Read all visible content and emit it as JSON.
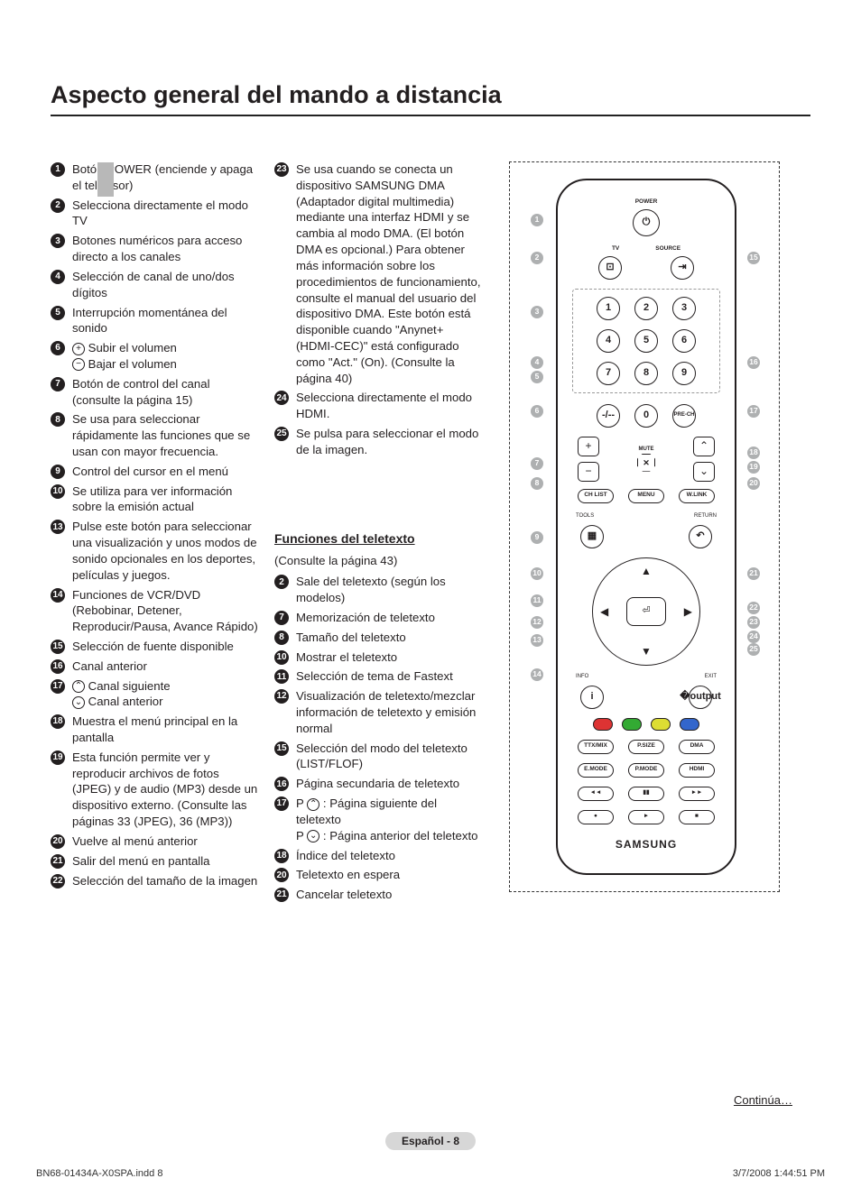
{
  "title": "Aspecto general del mando a distancia",
  "column1": [
    {
      "n": 1,
      "t": "Botón POWER (enciende y apaga el televisor)"
    },
    {
      "n": 2,
      "t": "Selecciona directamente el modo TV"
    },
    {
      "n": 3,
      "t": "Botones numéricos para acceso directo a los canales"
    },
    {
      "n": 4,
      "t": "Selección de canal de uno/dos dígitos"
    },
    {
      "n": 5,
      "t": "Interrupción momentánea del sonido"
    },
    {
      "n": 6,
      "t": "",
      "lines": [
        {
          "icon": "plus",
          "t": "Subir el volumen"
        },
        {
          "icon": "minus",
          "t": "Bajar el volumen"
        }
      ]
    },
    {
      "n": 7,
      "t": "Botón de control del canal (consulte la página 15)"
    },
    {
      "n": 8,
      "t": "Se usa para seleccionar rápidamente las funciones que se usan con mayor frecuencia."
    },
    {
      "n": 9,
      "t": "Control del cursor en el menú"
    },
    {
      "n": 10,
      "t": "Se utiliza para ver información sobre la emisión actual"
    },
    {
      "n": 13,
      "t": "Pulse este botón para seleccionar una visualización y unos modos de sonido opcionales en los deportes, películas y juegos."
    },
    {
      "n": 14,
      "t": "Funciones de VCR/DVD (Rebobinar, Detener, Reproducir/Pausa, Avance Rápido)"
    },
    {
      "n": 15,
      "t": "Selección de fuente disponible"
    },
    {
      "n": 16,
      "t": "Canal anterior"
    },
    {
      "n": 17,
      "t": "",
      "lines": [
        {
          "icon": "up",
          "t": "Canal siguiente"
        },
        {
          "icon": "down",
          "t": "Canal anterior"
        }
      ]
    },
    {
      "n": 18,
      "t": "Muestra el menú principal en la pantalla"
    },
    {
      "n": 19,
      "t": "Esta función permite ver y reproducir archivos de fotos (JPEG) y de audio (MP3) desde un dispositivo externo. (Consulte las páginas 33 (JPEG), 36 (MP3))"
    },
    {
      "n": 20,
      "t": "Vuelve al menú anterior"
    },
    {
      "n": 21,
      "t": "Salir del menú en pantalla"
    },
    {
      "n": 22,
      "t": "Selección del tamaño de la imagen"
    }
  ],
  "column2a": [
    {
      "n": 23,
      "t": "Se usa cuando se conecta un dispositivo SAMSUNG DMA (Adaptador digital multimedia) mediante una interfaz HDMI y se cambia al modo DMA. (El botón DMA es opcional.) Para obtener más información sobre los procedimientos de funcionamiento, consulte el manual del usuario del dispositivo DMA. Este botón está disponible cuando \"Anynet+ (HDMI-CEC)\" está configurado como \"Act.\" (On). (Consulte la página 40)"
    },
    {
      "n": 24,
      "t": "Selecciona directamente el modo HDMI."
    },
    {
      "n": 25,
      "t": "Se pulsa para seleccionar el modo de la imagen."
    }
  ],
  "teletext_header": "Funciones del teletexto",
  "teletext_sub": "(Consulte la página 43)",
  "teletext_items": [
    {
      "n": 2,
      "t": "Sale del teletexto (según los modelos)"
    },
    {
      "n": 7,
      "t": "Memorización de teletexto"
    },
    {
      "n": 8,
      "t": "Tamaño del teletexto"
    },
    {
      "n": 10,
      "t": "Mostrar el teletexto"
    },
    {
      "n": 11,
      "t": "Selección de tema de Fastext"
    },
    {
      "n": 12,
      "t": "Visualización de teletexto/mezclar información de teletexto y emisión normal"
    },
    {
      "n": 15,
      "t": "Selección del modo del teletexto (LIST/FLOF)"
    },
    {
      "n": 16,
      "t": "Página secundaria de teletexto"
    },
    {
      "n": 17,
      "t": "",
      "lines": [
        {
          "prefix": "P",
          "icon": "up",
          "t": ": Página siguiente del teletexto"
        },
        {
          "prefix": "P",
          "icon": "down",
          "t": ": Página anterior del teletexto"
        }
      ]
    },
    {
      "n": 18,
      "t": "Índice del teletexto"
    },
    {
      "n": 20,
      "t": "Teletexto en espera"
    },
    {
      "n": 21,
      "t": "Cancelar teletexto"
    }
  ],
  "remote": {
    "power": "POWER",
    "tv": "TV",
    "source": "SOURCE",
    "numbers": [
      "1",
      "2",
      "3",
      "4",
      "5",
      "6",
      "7",
      "8",
      "9"
    ],
    "zero": "0",
    "pre": "PRE-CH",
    "dash": "-/--",
    "mute": "MUTE",
    "plus": "+",
    "minus": "−",
    "chup": "⌃",
    "chdown": "⌄",
    "chlist": "CH LIST",
    "menu": "MENU",
    "wlink": "W.LINK",
    "tools": "TOOLS",
    "return": "RETURN",
    "enter": "⏎",
    "info": "INFO",
    "exit": "EXIT",
    "row1": [
      "TTX/MIX",
      "P.SIZE",
      "DMA"
    ],
    "row2": [
      "E.MODE",
      "P.MODE",
      "HDMI"
    ],
    "transport": [
      "◄◄",
      "▮▮",
      "►►"
    ],
    "transport2": [
      "●",
      "►",
      "■"
    ],
    "logo": "SAMSUNG",
    "colors": [
      "#d33",
      "#3a3",
      "#dd3",
      "#36c"
    ]
  },
  "continue": "Continúa…",
  "badge": "Español - 8",
  "footer_left": "BN68-01434A-X0SPA.indd   8",
  "footer_right": "3/7/2008   1:44:51 PM"
}
